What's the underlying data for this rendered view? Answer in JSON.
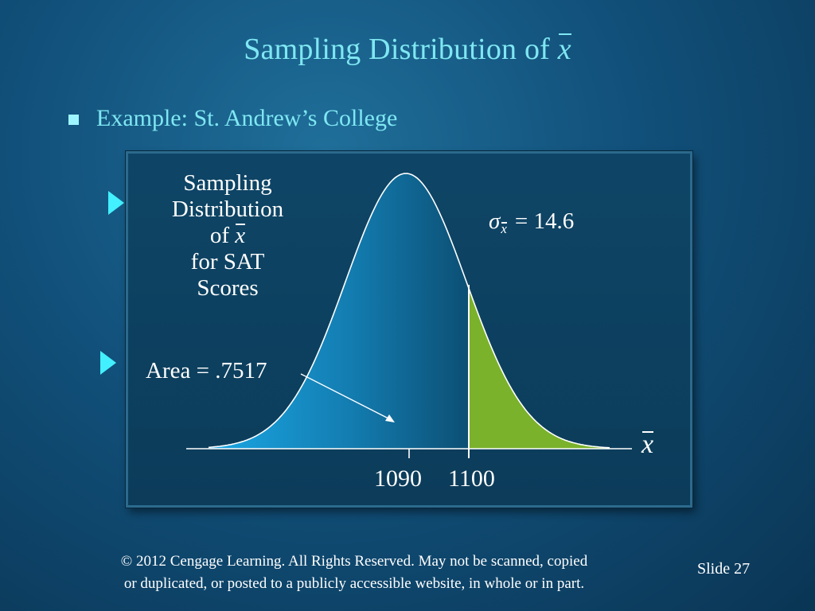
{
  "slide": {
    "title_prefix": "Sampling Distribution of",
    "title_symbol": "x"
  },
  "bullet": {
    "text": "Example:  St. Andrew’s College"
  },
  "figure": {
    "caption_line1": "Sampling",
    "caption_line2": "Distribution",
    "caption_line3_prefix": "of",
    "caption_symbol": "x",
    "caption_line4": "for SAT",
    "caption_line5": "Scores",
    "sigma_symbol": "σ",
    "sigma_subscript": "x",
    "sigma_value": "= 14.6",
    "area_label": "Area = .7517",
    "tick_mean": "1090",
    "tick_cutoff": "1100",
    "axis_symbol": "x",
    "colors": {
      "left_area": "#1aa7e4",
      "left_area_dark": "#0c4f74",
      "right_area": "#7ab22b",
      "curve": "#ffffff"
    }
  },
  "footer": {
    "line1": "© 2012  Cengage Learning.  All Rights Reserved.  May not be scanned, copied",
    "line2": "or duplicated, or posted to a publicly accessible website, in whole or in part.",
    "slide_label": "Slide  27"
  }
}
